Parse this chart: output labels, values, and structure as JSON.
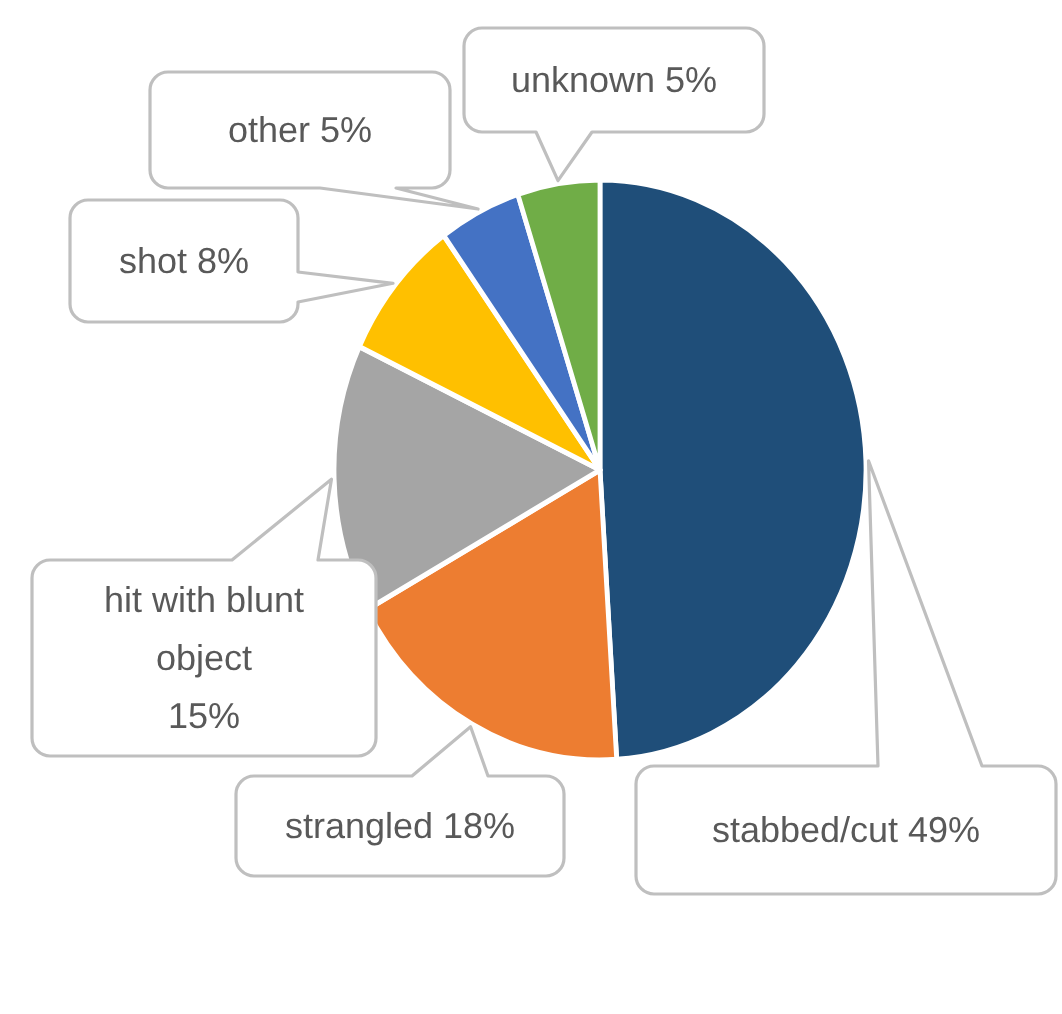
{
  "chart_data": {
    "type": "pie",
    "categories": [
      "stabbed/cut",
      "strangled",
      "hit with blunt object",
      "shot",
      "other",
      "unknown"
    ],
    "values": [
      49,
      18,
      15,
      8,
      5,
      5
    ],
    "colors": [
      "#1f4e79",
      "#ed7d31",
      "#a5a5a5",
      "#ffc000",
      "#4472c4",
      "#70ad47"
    ],
    "value_labels": [
      "49%",
      "18%",
      "15%",
      "8%",
      "5%",
      "5%"
    ]
  }
}
